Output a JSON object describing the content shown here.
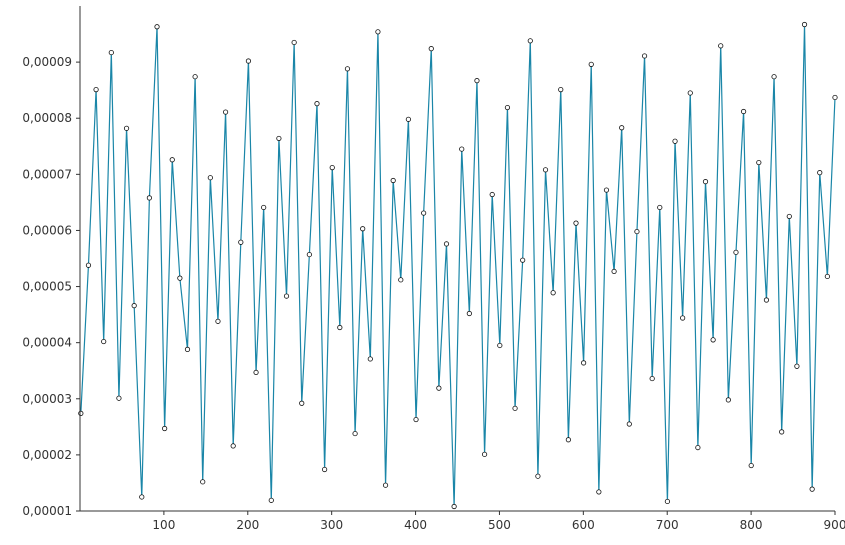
{
  "chart_data": {
    "type": "line",
    "title": "",
    "xlabel": "",
    "ylabel": "",
    "xlim": [
      0,
      900
    ],
    "ylim": [
      1e-05,
      0.0001
    ],
    "x_ticks": [
      100,
      200,
      300,
      400,
      500,
      600,
      700,
      800,
      900
    ],
    "x_tick_labels": [
      "100",
      "200",
      "300",
      "400",
      "500",
      "600",
      "700",
      "800",
      "900"
    ],
    "y_ticks": [
      1e-05,
      2e-05,
      3e-05,
      4e-05,
      5e-05,
      6e-05,
      7e-05,
      8e-05,
      9e-05
    ],
    "y_tick_labels": [
      "0,00001",
      "0,00002",
      "0,00003",
      "0,00004",
      "0,00005",
      "0,00006",
      "0,00007",
      "0,00008",
      "0,00009"
    ],
    "grid": false,
    "legend": "none",
    "colors": {
      "line": "#1a86a8",
      "marker_stroke": "#111111",
      "marker_fill": "#ffffff",
      "axis": "#333333"
    },
    "series": [
      {
        "x_start": 1,
        "x_step": 1,
        "values": [
          2.74e-05,
          5.38e-05,
          8.51e-05,
          4.02e-05,
          9.17e-05,
          3.01e-05,
          7.82e-05,
          4.66e-05,
          1.25e-05,
          6.58e-05,
          9.63e-05,
          2.47e-05,
          7.26e-05,
          5.15e-05,
          3.88e-05,
          8.74e-05,
          1.52e-05,
          6.94e-05,
          4.38e-05,
          8.11e-05,
          2.16e-05,
          5.79e-05,
          9.02e-05,
          3.47e-05,
          6.41e-05,
          1.19e-05,
          7.64e-05,
          4.83e-05,
          9.35e-05,
          2.92e-05,
          5.57e-05,
          8.26e-05,
          1.74e-05,
          7.12e-05,
          4.27e-05,
          8.88e-05,
          2.38e-05,
          6.03e-05,
          3.71e-05,
          9.54e-05,
          1.46e-05,
          6.89e-05,
          5.12e-05,
          7.98e-05,
          2.63e-05,
          6.31e-05,
          9.24e-05,
          3.19e-05,
          5.76e-05,
          1.08e-05,
          7.45e-05,
          4.52e-05,
          8.67e-05,
          2.01e-05,
          6.64e-05,
          3.95e-05,
          8.19e-05,
          2.83e-05,
          5.47e-05,
          9.38e-05,
          1.62e-05,
          7.08e-05,
          4.89e-05,
          8.51e-05,
          2.27e-05,
          6.13e-05,
          3.64e-05,
          8.96e-05,
          1.34e-05,
          6.72e-05,
          5.27e-05,
          7.83e-05,
          2.55e-05,
          5.98e-05,
          9.11e-05,
          3.36e-05,
          6.41e-05,
          1.17e-05,
          7.59e-05,
          4.44e-05,
          8.45e-05,
          2.13e-05,
          6.87e-05,
          4.05e-05,
          9.29e-05,
          2.98e-05,
          5.61e-05,
          8.12e-05,
          1.81e-05,
          7.21e-05,
          4.76e-05,
          8.74e-05,
          2.41e-05,
          6.25e-05,
          3.58e-05,
          9.67e-05,
          1.39e-05,
          7.03e-05,
          5.18e-05,
          8.37e-05
        ]
      }
    ]
  }
}
